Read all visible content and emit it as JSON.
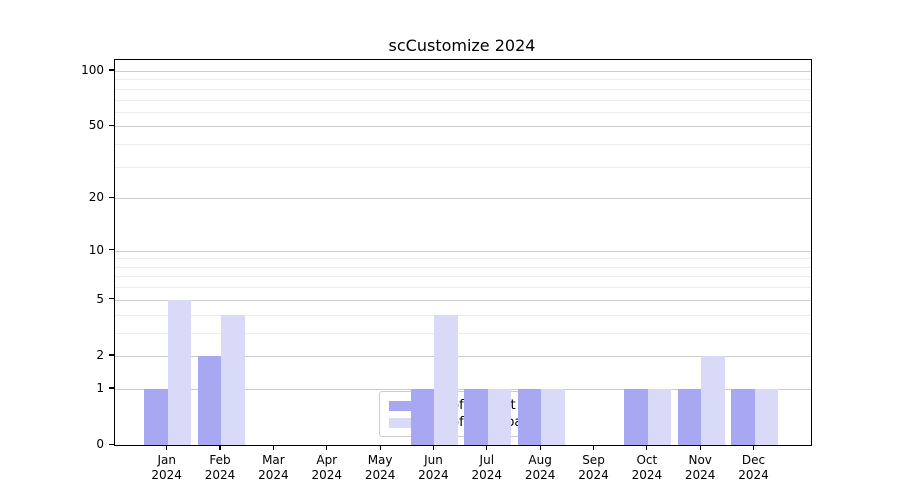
{
  "chart_data": {
    "type": "bar",
    "title": "scCustomize 2024",
    "categories": [
      "Jan 2024",
      "Feb 2024",
      "Mar 2024",
      "Apr 2024",
      "May 2024",
      "Jun 2024",
      "Jul 2024",
      "Aug 2024",
      "Sep 2024",
      "Oct 2024",
      "Nov 2024",
      "Dec 2024"
    ],
    "series": [
      {
        "name": "Nb of distinct IPs",
        "color": "#a8a8f2",
        "values": [
          1,
          2,
          0,
          0,
          0,
          1,
          1,
          1,
          0,
          1,
          1,
          1
        ]
      },
      {
        "name": "Nb of downloads",
        "color": "#d9d9f8",
        "values": [
          5,
          4,
          0,
          0,
          0,
          4,
          1,
          1,
          0,
          1,
          2,
          1
        ]
      }
    ],
    "xlabel": "",
    "ylabel": "",
    "yscale": "log10(value+1)",
    "ytick_values": [
      0,
      1,
      2,
      5,
      10,
      20,
      50,
      100
    ],
    "ytick_labels": [
      "0",
      "1",
      "2",
      "5",
      "10",
      "20",
      "50",
      "100"
    ],
    "minor_gridline_values": [
      3,
      4,
      6,
      7,
      8,
      9,
      30,
      40,
      60,
      70,
      80,
      90
    ],
    "ylim": [
      0,
      115
    ],
    "grid": "horizontal",
    "legend": {
      "position": "inside-bottom-center"
    },
    "colors": {
      "major_grid": "#cbcbcb",
      "minor_grid": "#ececec",
      "axis": "#000000",
      "background": "#ffffff"
    }
  }
}
